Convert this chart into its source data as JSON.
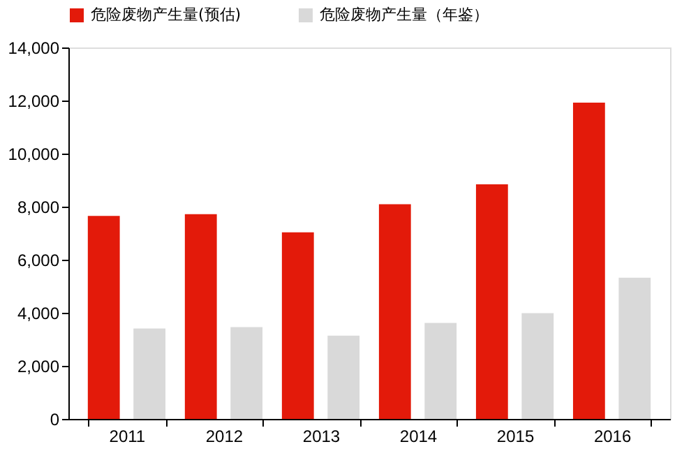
{
  "chart_data": {
    "type": "bar",
    "categories": [
      "2011",
      "2012",
      "2013",
      "2014",
      "2015",
      "2016"
    ],
    "series": [
      {
        "name": "危险废物产生量(预估)",
        "color": "#e31a0a",
        "values": [
          7650,
          7720,
          7030,
          8090,
          8840,
          11920
        ]
      },
      {
        "name": "危险废物产生量（年鉴）",
        "color": "#d9d9d9",
        "values": [
          3410,
          3460,
          3140,
          3620,
          3990,
          5320
        ]
      }
    ],
    "ylim": [
      0,
      14000
    ],
    "yticks": [
      0,
      {
        "value": 2000,
        "label": "2,000"
      },
      {
        "value": 4000,
        "label": "4,000"
      },
      {
        "value": 6000,
        "label": "6,000"
      },
      {
        "value": 8000,
        "label": "8,000"
      },
      {
        "value": 10000,
        "label": "10,000"
      },
      {
        "value": 12000,
        "label": "12,000"
      },
      {
        "value": 14000,
        "label": "14,000"
      }
    ],
    "grid": false,
    "legend": "top"
  }
}
